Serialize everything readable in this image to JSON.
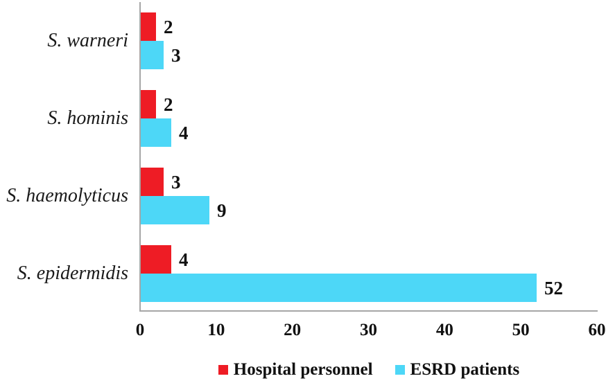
{
  "chart_data": {
    "type": "bar",
    "orientation": "horizontal",
    "title": "",
    "xlabel": "",
    "ylabel": "",
    "categories": [
      "S. warneri",
      "S. hominis",
      "S. haemolyticus",
      "S. epidermidis"
    ],
    "series": [
      {
        "name": "Hospital personnel",
        "color": "#ee1c25",
        "values": [
          2,
          2,
          3,
          4
        ]
      },
      {
        "name": "ESRD patients",
        "color": "#4dd7f7",
        "values": [
          3,
          4,
          9,
          52
        ]
      }
    ],
    "data_labels": {
      "Hospital personnel": [
        "2",
        "2",
        "3",
        "4"
      ],
      "ESRD patients": [
        "3",
        "4",
        "9",
        "52"
      ]
    },
    "xlim": [
      0,
      60
    ],
    "xticks": [
      "0",
      "10",
      "20",
      "30",
      "40",
      "50",
      "60"
    ],
    "grid": false,
    "legend_position": "bottom",
    "axis_color": "#a6a6a6",
    "text_color": "#111111",
    "background_color": "#ffffff"
  }
}
